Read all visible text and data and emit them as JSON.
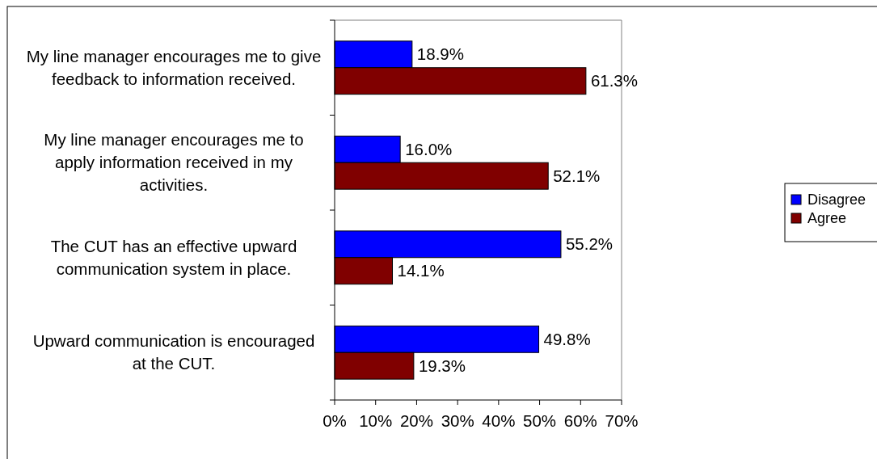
{
  "chart_data": {
    "type": "bar",
    "orientation": "horizontal",
    "categories": [
      "My line manager encourages me to give feedback to information received.",
      "My line manager encourages me to apply information received in my activities.",
      "The CUT has an effective upward communication system in place.",
      "Upward communication is encouraged at the CUT."
    ],
    "series": [
      {
        "name": "Disagree",
        "color": "#0000ff",
        "values": [
          18.9,
          16.0,
          55.2,
          49.8
        ],
        "value_labels": [
          "18.9%",
          "16.0%",
          "55.2%",
          "49.8%"
        ]
      },
      {
        "name": "Agree",
        "color": "#800000",
        "values": [
          61.3,
          52.1,
          14.1,
          19.3
        ],
        "value_labels": [
          "61.3%",
          "52.1%",
          "14.1%",
          "19.3%"
        ]
      }
    ],
    "xlim": [
      0,
      70
    ],
    "xticks": [
      {
        "value": 0,
        "label": "0%"
      },
      {
        "value": 10,
        "label": "10%"
      },
      {
        "value": 20,
        "label": "20%"
      },
      {
        "value": 30,
        "label": "30%"
      },
      {
        "value": 40,
        "label": "40%"
      },
      {
        "value": 50,
        "label": "50%"
      },
      {
        "value": 60,
        "label": "60%"
      },
      {
        "value": 70,
        "label": "70%"
      }
    ],
    "legend": "right",
    "grid": false
  }
}
